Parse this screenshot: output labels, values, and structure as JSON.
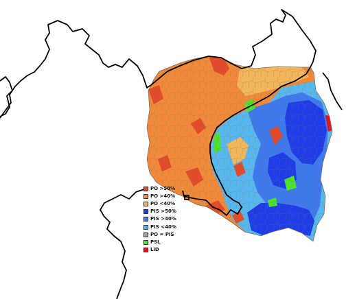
{
  "palette": {
    "background": "#ffffff",
    "border_line": "#000000",
    "district_line": "#7d6c63",
    "po_gt50": "#e44b2a",
    "po_gt40": "#f08a3a",
    "po_lt40": "#f3b65a",
    "pis_gt50": "#1f3de6",
    "pis_gt40": "#3e79ee",
    "pis_lt40": "#58b8ee",
    "po_eq_pis": "#a0a0a0",
    "psl": "#4de22b",
    "lid": "#e8101a"
  },
  "legend": [
    {
      "label": "PO >50%",
      "color": "#e44b2a"
    },
    {
      "label": "PO >40%",
      "color": "#f08a3a"
    },
    {
      "label": "PO <40%",
      "color": "#f3b65a"
    },
    {
      "label": "PIS >50%",
      "color": "#1f3de6"
    },
    {
      "label": "PIS >40%",
      "color": "#3e79ee"
    },
    {
      "label": "PIS <40%",
      "color": "#58b8ee"
    },
    {
      "label": "PO = PIS",
      "color": "#a0a0a0"
    },
    {
      "label": "PSL",
      "color": "#4de22b"
    },
    {
      "label": "LiD",
      "color": "#e8101a"
    }
  ]
}
